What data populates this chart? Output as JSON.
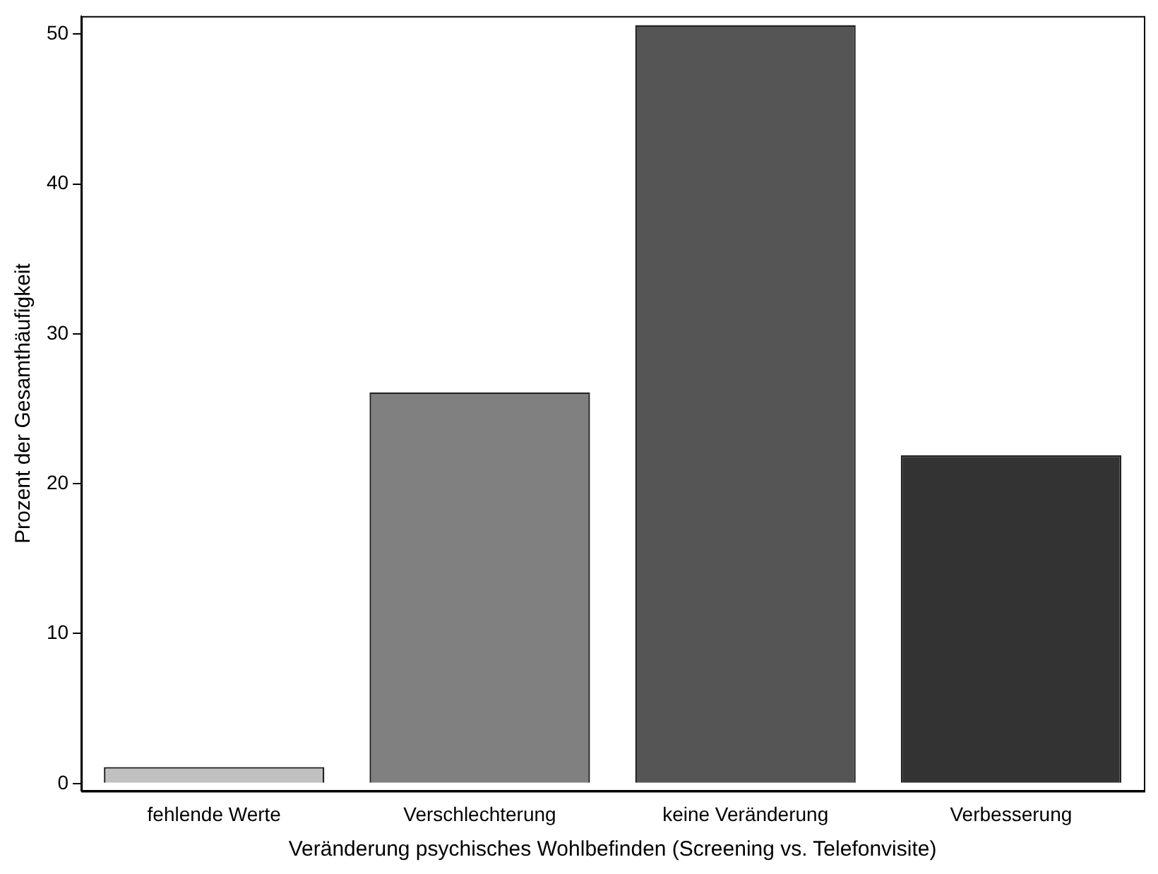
{
  "chart_data": {
    "type": "bar",
    "xlabel": "Veränderung psychisches Wohlbefinden (Screening vs. Telefonvisite)",
    "ylabel": "Prozent der Gesamthäufigkeit",
    "categories": [
      "fehlende Werte",
      "Verschlechterung",
      "keine Veränderung",
      "Verbesserung"
    ],
    "values": [
      1.1,
      26.1,
      50.6,
      21.9
    ],
    "colors": [
      "#c0c0c0",
      "#808080",
      "#555555",
      "#333333"
    ],
    "ylim": [
      -0.5,
      51.2
    ],
    "yticks": [
      0,
      10,
      20,
      30,
      40,
      50
    ],
    "grid": false,
    "legend": false
  }
}
